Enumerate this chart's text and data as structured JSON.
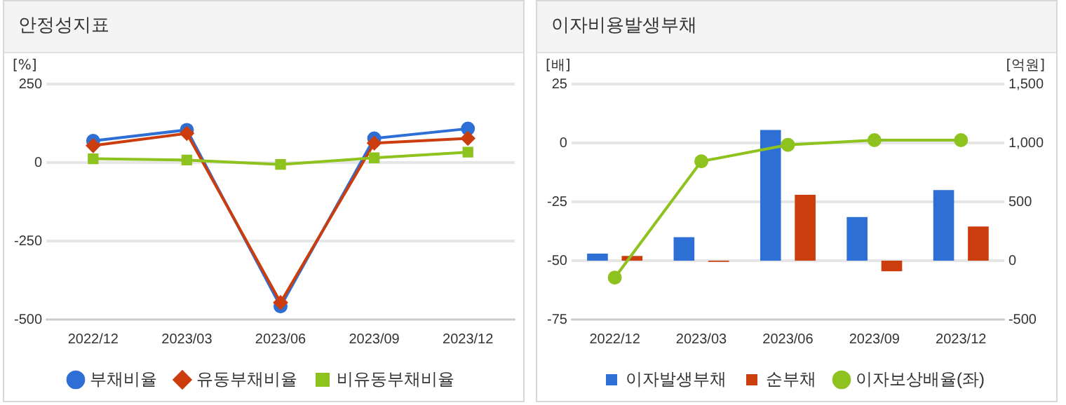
{
  "chart_data": [
    {
      "type": "line",
      "title": "안정성지표",
      "ylabel": "[%]",
      "categories": [
        "2022/12",
        "2023/03",
        "2023/06",
        "2023/09",
        "2023/12"
      ],
      "series": [
        {
          "name": "부채비율",
          "color": "#2e6fd6",
          "marker": "circle",
          "values": [
            69,
            104,
            -458,
            77,
            108
          ]
        },
        {
          "name": "유동부채비율",
          "color": "#cc3d0e",
          "marker": "diamond",
          "values": [
            54,
            93,
            -446,
            62,
            77
          ]
        },
        {
          "name": "비유동부채비율",
          "color": "#8dc21f",
          "marker": "square",
          "values": [
            12,
            8,
            -6,
            15,
            33
          ]
        }
      ],
      "ylim": [
        -500,
        250
      ],
      "yticks": [
        -500,
        -250,
        0,
        250
      ],
      "grid": "y",
      "legend": "bottom"
    },
    {
      "type": "bar",
      "title": "이자비용발생부채",
      "ylabel": "[배]",
      "y2label": "[억원]",
      "categories": [
        "2022/12",
        "2023/03",
        "2023/06",
        "2023/09",
        "2023/12"
      ],
      "series": [
        {
          "name": "이자발생부채",
          "color": "#2e6fd6",
          "axis": "y2",
          "values": [
            60,
            200,
            1110,
            370,
            600
          ]
        },
        {
          "name": "순부채",
          "color": "#cc3d0e",
          "axis": "y2",
          "values": [
            40,
            -10,
            560,
            -90,
            290
          ]
        },
        {
          "name": "이자보상배율(좌)",
          "type": "line",
          "color": "#8dc21f",
          "marker": "circle",
          "values": [
            -57.2,
            -7.8,
            -0.8,
            1.2,
            1.2
          ]
        }
      ],
      "ylim": [
        -75,
        25
      ],
      "yticks": [
        -75,
        -50,
        -25,
        0,
        25
      ],
      "y2lim": [
        -500,
        1500
      ],
      "y2ticks": [
        -500,
        0,
        500,
        {
          "value": 1000,
          "label": "1,000"
        },
        {
          "value": 1500,
          "label": "1,500"
        }
      ],
      "grid": "y",
      "legend": "bottom"
    }
  ]
}
